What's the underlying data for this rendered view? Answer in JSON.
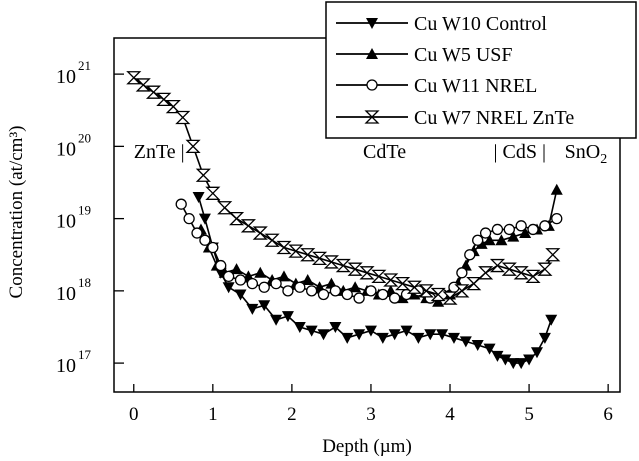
{
  "chart_data": {
    "type": "line",
    "title": "",
    "xlabel": "Depth (µm)",
    "ylabel": "Concentration (at/cm³)",
    "xlim": [
      -0.25,
      6.15
    ],
    "ylim": [
      16.6,
      21.5
    ],
    "yscale": "log",
    "grid": false,
    "legend_position": "top-right",
    "x_ticks": [
      0,
      1,
      2,
      3,
      4,
      5,
      6
    ],
    "x_tick_labels": [
      "0",
      "1",
      "2",
      "3",
      "4",
      "5",
      "6"
    ],
    "y_ticks": [
      17,
      18,
      19,
      20,
      21
    ],
    "y_tick_base": "10",
    "y_tick_exponents": [
      "17",
      "18",
      "19",
      "20",
      "21"
    ],
    "annotations": [
      {
        "text": "ZnTe |",
        "x": 0.0,
        "y": 19.95
      },
      {
        "text": "CdTe",
        "x": 2.9,
        "y": 19.95
      },
      {
        "text": "| CdS |",
        "x": 4.55,
        "y": 19.95
      },
      {
        "text": "SnO",
        "sub": "2",
        "x": 5.45,
        "y": 19.95
      }
    ],
    "series": [
      {
        "name": "Cu W10 Control",
        "marker": "triangle-down",
        "x": [
          0.82,
          0.9,
          1.0,
          1.1,
          1.2,
          1.35,
          1.5,
          1.65,
          1.8,
          1.95,
          2.1,
          2.25,
          2.4,
          2.55,
          2.7,
          2.85,
          3.0,
          3.15,
          3.3,
          3.45,
          3.6,
          3.75,
          3.9,
          4.05,
          4.2,
          4.35,
          4.5,
          4.6,
          4.7,
          4.8,
          4.9,
          5.0,
          5.1,
          5.2,
          5.28
        ],
        "y": [
          19.3,
          19.0,
          18.6,
          18.25,
          18.05,
          17.95,
          17.75,
          17.8,
          17.6,
          17.65,
          17.5,
          17.45,
          17.4,
          17.5,
          17.35,
          17.4,
          17.45,
          17.35,
          17.4,
          17.45,
          17.35,
          17.4,
          17.4,
          17.35,
          17.3,
          17.25,
          17.2,
          17.1,
          17.05,
          17.0,
          17.0,
          17.05,
          17.15,
          17.35,
          17.6
        ]
      },
      {
        "name": "Cu W5 USF",
        "marker": "triangle-up",
        "x": [
          0.85,
          0.95,
          1.05,
          1.15,
          1.3,
          1.45,
          1.6,
          1.75,
          1.9,
          2.05,
          2.2,
          2.35,
          2.5,
          2.65,
          2.8,
          2.95,
          3.1,
          3.25,
          3.4,
          3.55,
          3.7,
          3.85,
          4.0,
          4.1,
          4.2,
          4.3,
          4.4,
          4.5,
          4.65,
          4.8,
          4.95,
          5.1,
          5.25,
          5.35
        ],
        "y": [
          18.85,
          18.6,
          18.35,
          18.25,
          18.3,
          18.2,
          18.25,
          18.15,
          18.2,
          18.1,
          18.15,
          18.05,
          18.1,
          18.0,
          18.05,
          18.0,
          17.95,
          18.0,
          17.9,
          17.95,
          17.9,
          17.85,
          17.95,
          18.1,
          18.35,
          18.55,
          18.65,
          18.7,
          18.7,
          18.75,
          18.8,
          18.85,
          18.9,
          19.4
        ]
      },
      {
        "name": "Cu W11 NREL",
        "marker": "circle",
        "x": [
          0.6,
          0.7,
          0.8,
          0.9,
          1.0,
          1.1,
          1.2,
          1.35,
          1.5,
          1.65,
          1.8,
          1.95,
          2.1,
          2.25,
          2.4,
          2.55,
          2.7,
          2.85,
          3.0,
          3.15,
          3.3,
          3.45,
          3.6,
          3.75,
          3.9,
          4.05,
          4.15,
          4.25,
          4.35,
          4.45,
          4.6,
          4.75,
          4.9,
          5.05,
          5.2,
          5.35
        ],
        "y": [
          19.2,
          19.0,
          18.8,
          18.7,
          18.6,
          18.35,
          18.2,
          18.15,
          18.1,
          18.05,
          18.1,
          18.0,
          18.05,
          18.0,
          17.95,
          18.0,
          17.95,
          17.9,
          18.0,
          17.95,
          17.9,
          17.95,
          18.0,
          17.9,
          17.95,
          18.05,
          18.25,
          18.5,
          18.7,
          18.8,
          18.85,
          18.85,
          18.9,
          18.85,
          18.9,
          19.0
        ]
      },
      {
        "name": "Cu W7 NREL ZnTe",
        "marker": "hourglass",
        "x": [
          0.0,
          0.12,
          0.25,
          0.38,
          0.5,
          0.62,
          0.75,
          0.88,
          1.0,
          1.15,
          1.3,
          1.45,
          1.6,
          1.75,
          1.9,
          2.05,
          2.2,
          2.35,
          2.5,
          2.65,
          2.8,
          2.95,
          3.1,
          3.25,
          3.4,
          3.55,
          3.7,
          3.85,
          4.0,
          4.15,
          4.3,
          4.45,
          4.6,
          4.75,
          4.9,
          5.05,
          5.2,
          5.3
        ],
        "y": [
          20.95,
          20.85,
          20.75,
          20.65,
          20.55,
          20.4,
          20.0,
          19.6,
          19.35,
          19.15,
          19.0,
          18.9,
          18.8,
          18.7,
          18.6,
          18.55,
          18.5,
          18.45,
          18.4,
          18.35,
          18.3,
          18.25,
          18.2,
          18.15,
          18.1,
          18.05,
          18.0,
          17.95,
          17.9,
          18.0,
          18.1,
          18.25,
          18.35,
          18.3,
          18.25,
          18.2,
          18.3,
          18.5
        ]
      }
    ]
  }
}
